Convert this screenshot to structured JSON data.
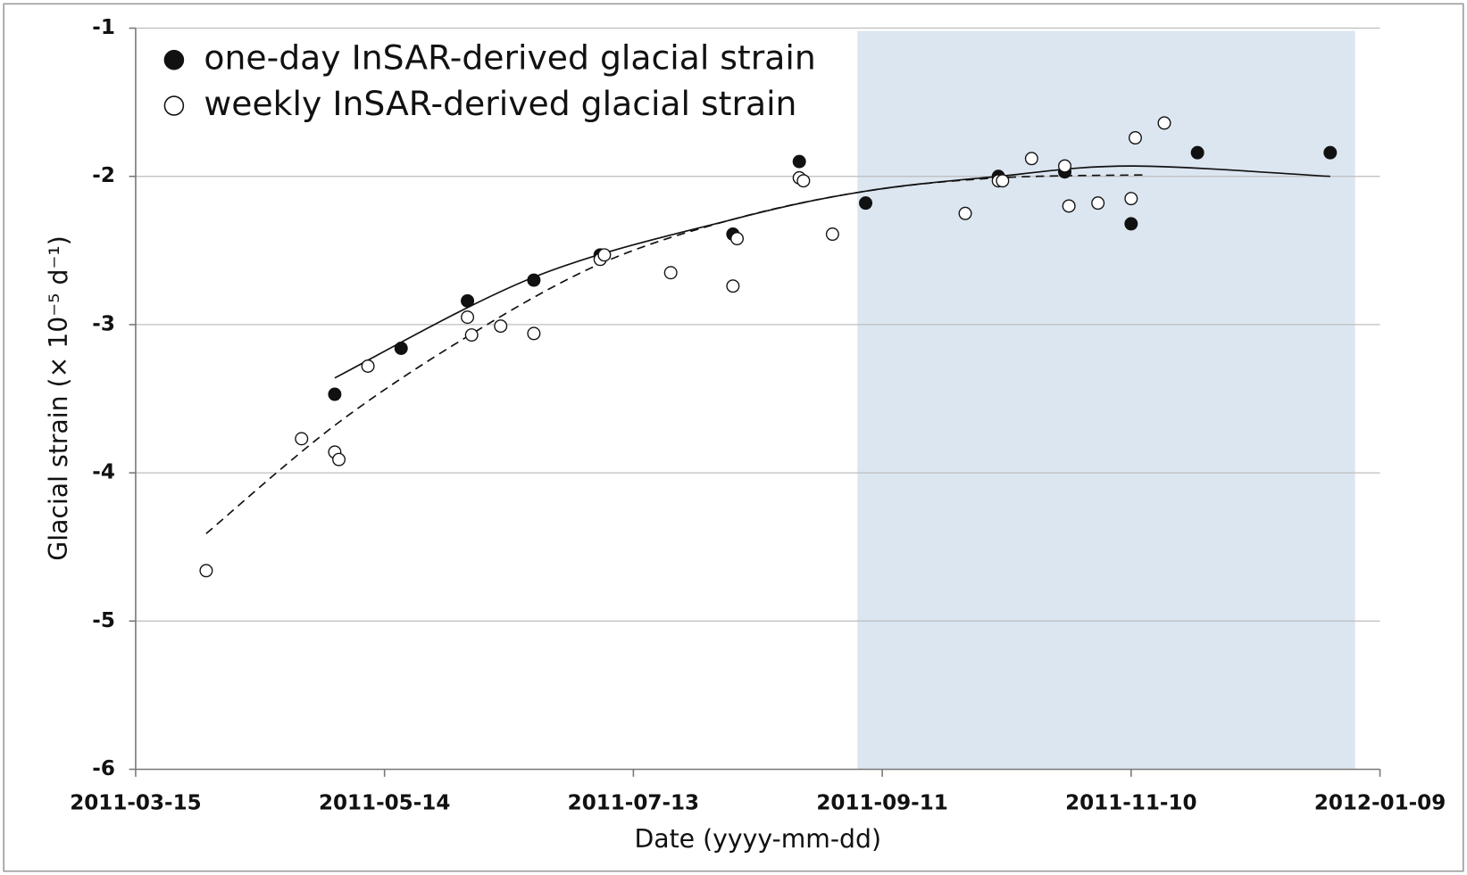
{
  "chart_data": {
    "type": "scatter",
    "x_label": "Date (yyyy-mm-dd)",
    "y_label": "Glacial strain (× 10⁻⁵ d⁻¹)",
    "xlim": [
      "2011-03-15",
      "2012-01-09"
    ],
    "xticks": [
      "2011-03-15",
      "2011-05-14",
      "2011-07-13",
      "2011-09-11",
      "2011-11-10",
      "2012-01-09"
    ],
    "ylim": [
      -6,
      -1
    ],
    "yticks": [
      -6,
      -5,
      -4,
      -3,
      -2,
      -1
    ],
    "grid": true,
    "legend": "upper left",
    "shaded_region": {
      "x": [
        "2011-09-05",
        "2012-01-03"
      ],
      "color": "#dce6f1"
    },
    "series": [
      {
        "name": "one-day InSAR-derived glacial strain",
        "color": "#111111",
        "marker": "filled",
        "x": [
          "2011-05-02",
          "2011-05-18",
          "2011-06-03",
          "2011-06-19",
          "2011-07-05",
          "2011-08-06",
          "2011-08-22",
          "2011-09-07",
          "2011-10-09",
          "2011-10-25",
          "2011-11-10",
          "2011-11-26",
          "2011-12-28"
        ],
        "values": [
          -3.47,
          -3.16,
          -2.84,
          -2.7,
          -2.53,
          -2.39,
          -1.9,
          -2.18,
          -2.0,
          -1.97,
          -2.32,
          -1.84,
          -1.84
        ]
      },
      {
        "name": "weekly InSAR-derived glacial strain",
        "color": "#111111",
        "marker": "open",
        "x": [
          "2011-04-01",
          "2011-04-24",
          "2011-05-02",
          "2011-05-03",
          "2011-05-10",
          "2011-06-03",
          "2011-06-04",
          "2011-06-11",
          "2011-06-19",
          "2011-07-05",
          "2011-07-06",
          "2011-07-22",
          "2011-08-06",
          "2011-08-07",
          "2011-08-22",
          "2011-08-23",
          "2011-08-30",
          "2011-10-01",
          "2011-10-09",
          "2011-10-10",
          "2011-10-17",
          "2011-10-25",
          "2011-10-26",
          "2011-11-02",
          "2011-11-10",
          "2011-11-11",
          "2011-11-18"
        ],
        "values": [
          -4.66,
          -3.77,
          -3.86,
          -3.91,
          -3.28,
          -2.95,
          -3.07,
          -3.01,
          -3.06,
          -2.56,
          -2.53,
          -2.65,
          -2.74,
          -2.42,
          -2.01,
          -2.03,
          -2.39,
          -2.25,
          -2.03,
          -2.03,
          -1.88,
          -1.93,
          -2.2,
          -2.18,
          -2.15,
          -1.74,
          -1.64
        ]
      }
    ],
    "trendlines": [
      {
        "style": "solid",
        "color": "#111111",
        "x": [
          "2011-05-02",
          "2011-06-19",
          "2011-08-06",
          "2011-09-07",
          "2011-10-09",
          "2011-11-10",
          "2011-12-28"
        ],
        "values": [
          -3.36,
          -2.68,
          -2.29,
          -2.1,
          -2.0,
          -1.93,
          -2.0
        ]
      },
      {
        "style": "dashed",
        "color": "#111111",
        "x": [
          "2011-04-01",
          "2011-05-02",
          "2011-06-03",
          "2011-07-05",
          "2011-08-06",
          "2011-09-07",
          "2011-10-09",
          "2011-11-14"
        ],
        "values": [
          -4.41,
          -3.68,
          -3.08,
          -2.59,
          -2.29,
          -2.1,
          -2.01,
          -1.99
        ]
      }
    ]
  }
}
